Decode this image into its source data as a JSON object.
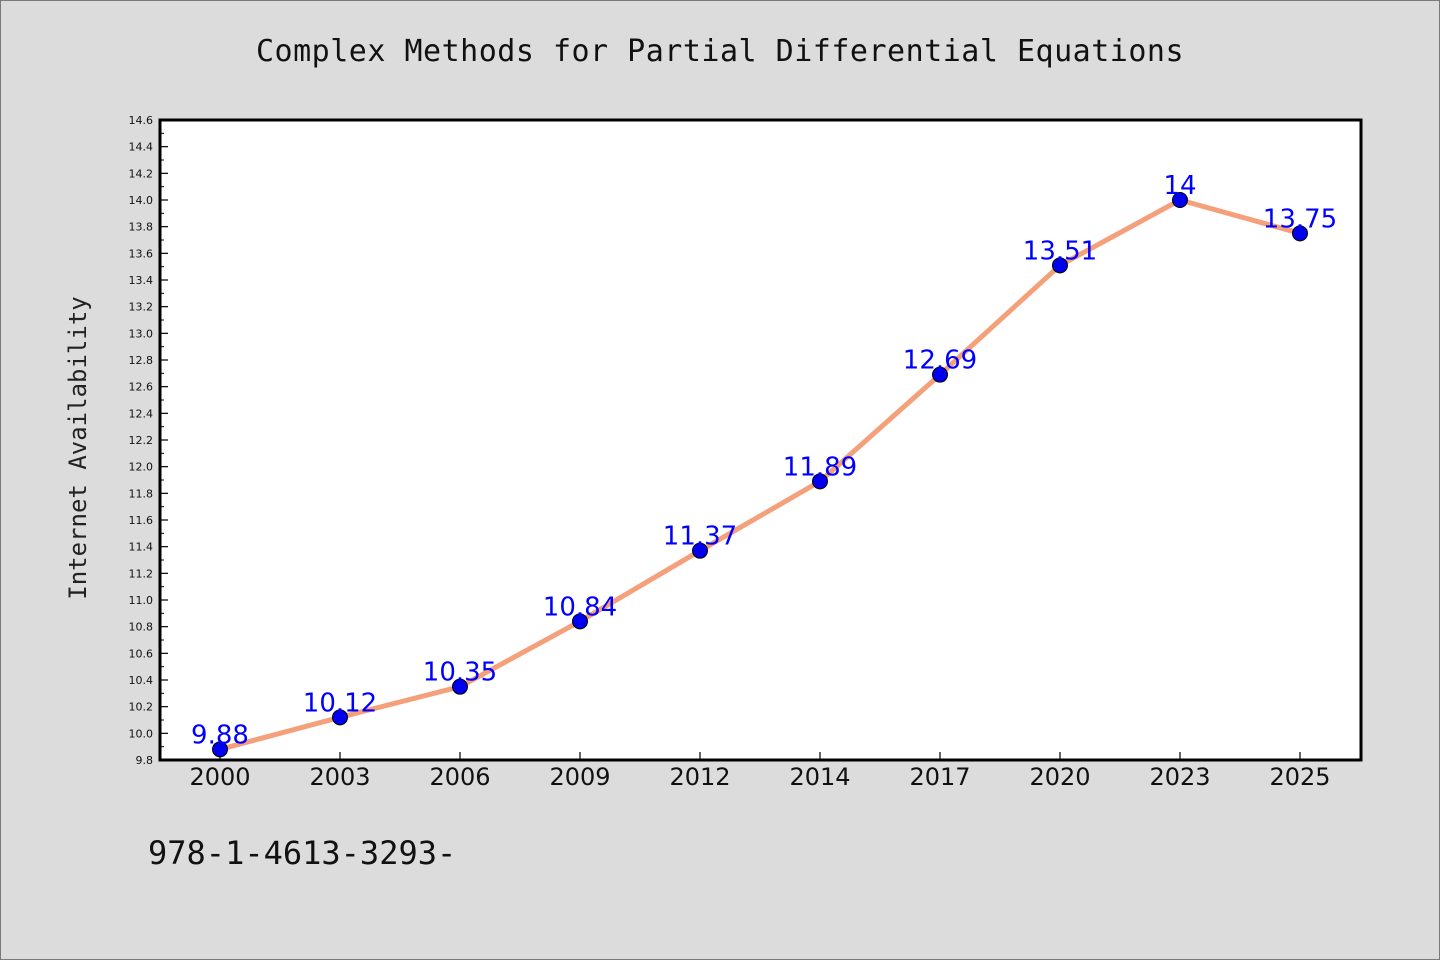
{
  "footer": {
    "text": "978-1-4613-3293-"
  },
  "chart_data": {
    "type": "line",
    "title": "Complex Methods for Partial Differential Equations",
    "xlabel": "",
    "ylabel": "Internet Availability",
    "categories": [
      "2000",
      "2003",
      "2006",
      "2009",
      "2012",
      "2014",
      "2017",
      "2020",
      "2023",
      "2025"
    ],
    "values": [
      9.88,
      10.12,
      10.35,
      10.84,
      11.37,
      11.89,
      12.69,
      13.51,
      14,
      13.75
    ],
    "data_labels": [
      "9.88",
      "10.12",
      "10.35",
      "10.84",
      "11.37",
      "11.89",
      "12.69",
      "13.51",
      "14",
      "13.75"
    ],
    "ylim": [
      9.8,
      14.6
    ],
    "yticks": [
      "9.8",
      "10.0",
      "10.2",
      "10.4",
      "10.6",
      "10.8",
      "11.0",
      "11.2",
      "11.4",
      "11.6",
      "11.8",
      "12.0",
      "12.2",
      "12.4",
      "12.6",
      "12.8",
      "13.0",
      "13.2",
      "13.4",
      "13.6",
      "13.8",
      "14.0",
      "14.2",
      "14.4",
      "14.6"
    ],
    "grid": false,
    "line_color": "#f4a07a",
    "marker_color": "#0000ee",
    "label_color": "#0000ff"
  }
}
